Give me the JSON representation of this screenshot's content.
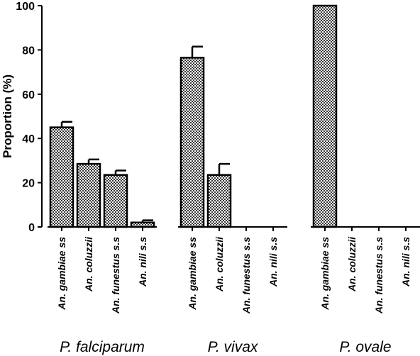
{
  "chart_data": {
    "type": "bar",
    "ylabel": "Proportion (%)",
    "ylim": [
      0,
      100
    ],
    "yticks": [
      0,
      20,
      40,
      60,
      80,
      100
    ],
    "grid": false,
    "bar_pattern": "checkered",
    "colors": {
      "bar_fill": "#9a9a9a",
      "bar_stroke": "#000000",
      "axis": "#000000"
    },
    "groups": [
      {
        "label": "P. falciparum",
        "categories": [
          "An. gambiae ss",
          "An. coluzzii",
          "An. funestus s.s",
          "An. nili s.s"
        ],
        "values": [
          45,
          28.5,
          23.5,
          2
        ],
        "errors": [
          2.5,
          2,
          2,
          1
        ]
      },
      {
        "label": "P. vivax",
        "categories": [
          "An. gambiae ss",
          "An. coluzzii",
          "An. funestus s.s",
          "An. nili s.s"
        ],
        "values": [
          76.5,
          23.5,
          0,
          0
        ],
        "errors": [
          5,
          5,
          0,
          0
        ]
      },
      {
        "label": "P. ovale",
        "categories": [
          "An. gambiae ss",
          "An. coluzzii",
          "An. funestus s.s",
          "An. nili s.s"
        ],
        "values": [
          100,
          0,
          0,
          0
        ],
        "errors": [
          0,
          0,
          0,
          0
        ]
      }
    ]
  }
}
